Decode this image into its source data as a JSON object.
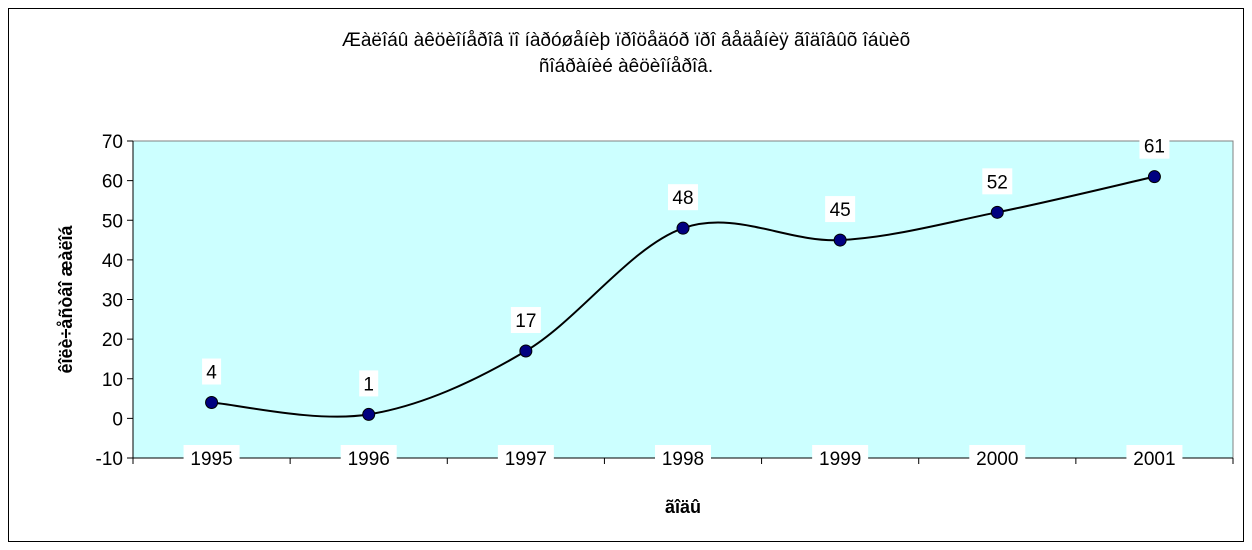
{
  "chart_data": {
    "type": "line",
    "title": "Æàëîáû àêöèîíåðîâ ïî íàðóøåíèþ ïðîöåäóð ïðî âåäåíèÿ ãîäîâûõ îáùèõ\nñîáðàíèé àêöèîíåðîâ.",
    "xlabel": "ãîäû",
    "ylabel": "êîëè÷åñòâî æàëîá",
    "categories": [
      "1995",
      "1996",
      "1997",
      "1998",
      "1999",
      "2000",
      "2001"
    ],
    "series": [
      {
        "values": [
          4,
          1,
          17,
          48,
          45,
          52,
          61
        ]
      }
    ],
    "data_labels": [
      "4",
      "1",
      "17",
      "48",
      "45",
      "52",
      "61"
    ],
    "ylim": [
      -10,
      70
    ],
    "yticks": [
      -10,
      0,
      10,
      20,
      30,
      40,
      50,
      60,
      70
    ],
    "smoothed": true,
    "grid": false,
    "legend": "none",
    "plot_background": "#ccffff",
    "line_color": "#000000",
    "marker_color": "#000080"
  }
}
